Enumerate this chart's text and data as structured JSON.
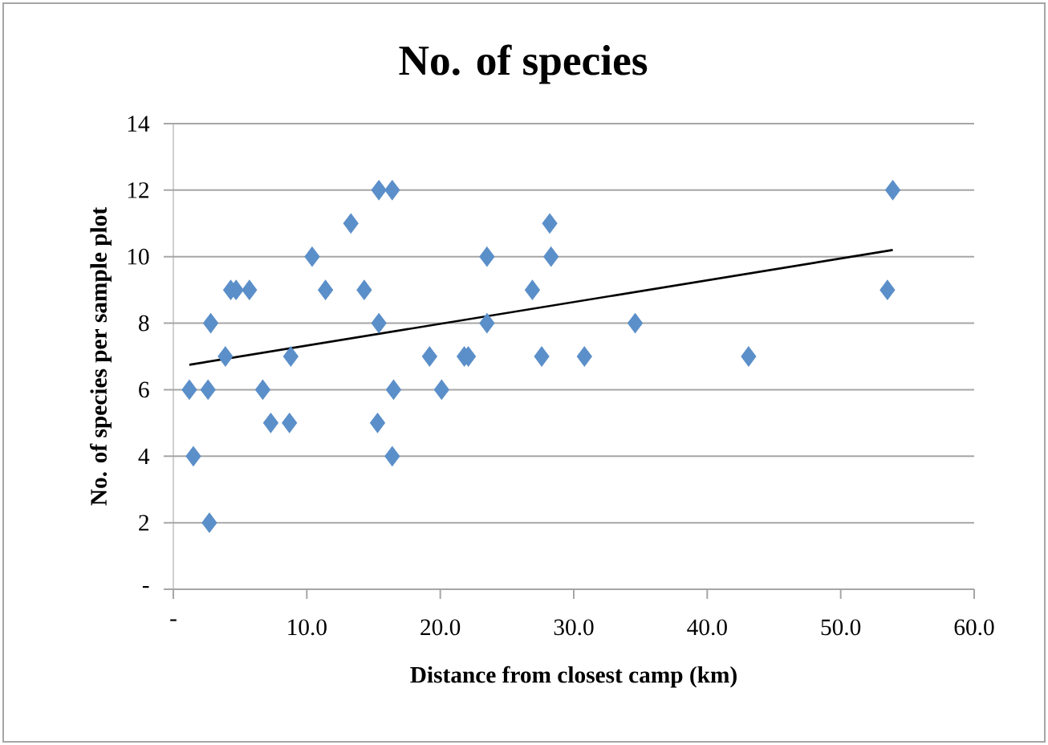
{
  "chart_data": {
    "type": "scatter",
    "title": "No. of species",
    "xlabel": "Distance from closest camp (km)",
    "ylabel": "No. of species per sample plot",
    "xlim": [
      0,
      60
    ],
    "ylim": [
      0,
      14
    ],
    "xticks": [
      {
        "value": 0,
        "label": "-"
      },
      {
        "value": 10,
        "label": "10.0"
      },
      {
        "value": 20,
        "label": "20.0"
      },
      {
        "value": 30,
        "label": "30.0"
      },
      {
        "value": 40,
        "label": "40.0"
      },
      {
        "value": 50,
        "label": "50.0"
      },
      {
        "value": 60,
        "label": "60.0"
      }
    ],
    "yticks": [
      {
        "value": 0,
        "label": "-"
      },
      2,
      4,
      6,
      8,
      10,
      12,
      14
    ],
    "grid": "y",
    "series": [
      {
        "marker": "diamond",
        "color": "#5b8fc9",
        "x": [
          1.2,
          1.5,
          2.6,
          2.7,
          2.8,
          3.9,
          4.3,
          4.7,
          5.7,
          6.7,
          7.3,
          8.7,
          8.8,
          10.4,
          11.4,
          13.3,
          14.3,
          15.4,
          15.4,
          15.3,
          16.4,
          16.5,
          16.4,
          19.2,
          20.1,
          21.8,
          22.1,
          23.5,
          23.5,
          26.9,
          27.6,
          28.2,
          28.3,
          30.8,
          34.6,
          43.1,
          53.5,
          53.9
        ],
        "values": [
          6,
          4,
          6,
          2,
          8,
          7,
          9,
          9,
          9,
          6,
          5,
          5,
          7,
          10,
          9,
          11,
          9,
          12,
          8,
          5,
          12,
          6,
          4,
          7,
          6,
          7,
          7,
          10,
          8,
          9,
          7,
          11,
          10,
          7,
          8,
          7,
          9,
          12
        ]
      },
      {
        "type": "line",
        "marker": "none",
        "line_style": "solid",
        "color": "#000000",
        "x": [
          1.2,
          53.9
        ],
        "values": [
          6.75,
          10.2
        ]
      }
    ]
  }
}
